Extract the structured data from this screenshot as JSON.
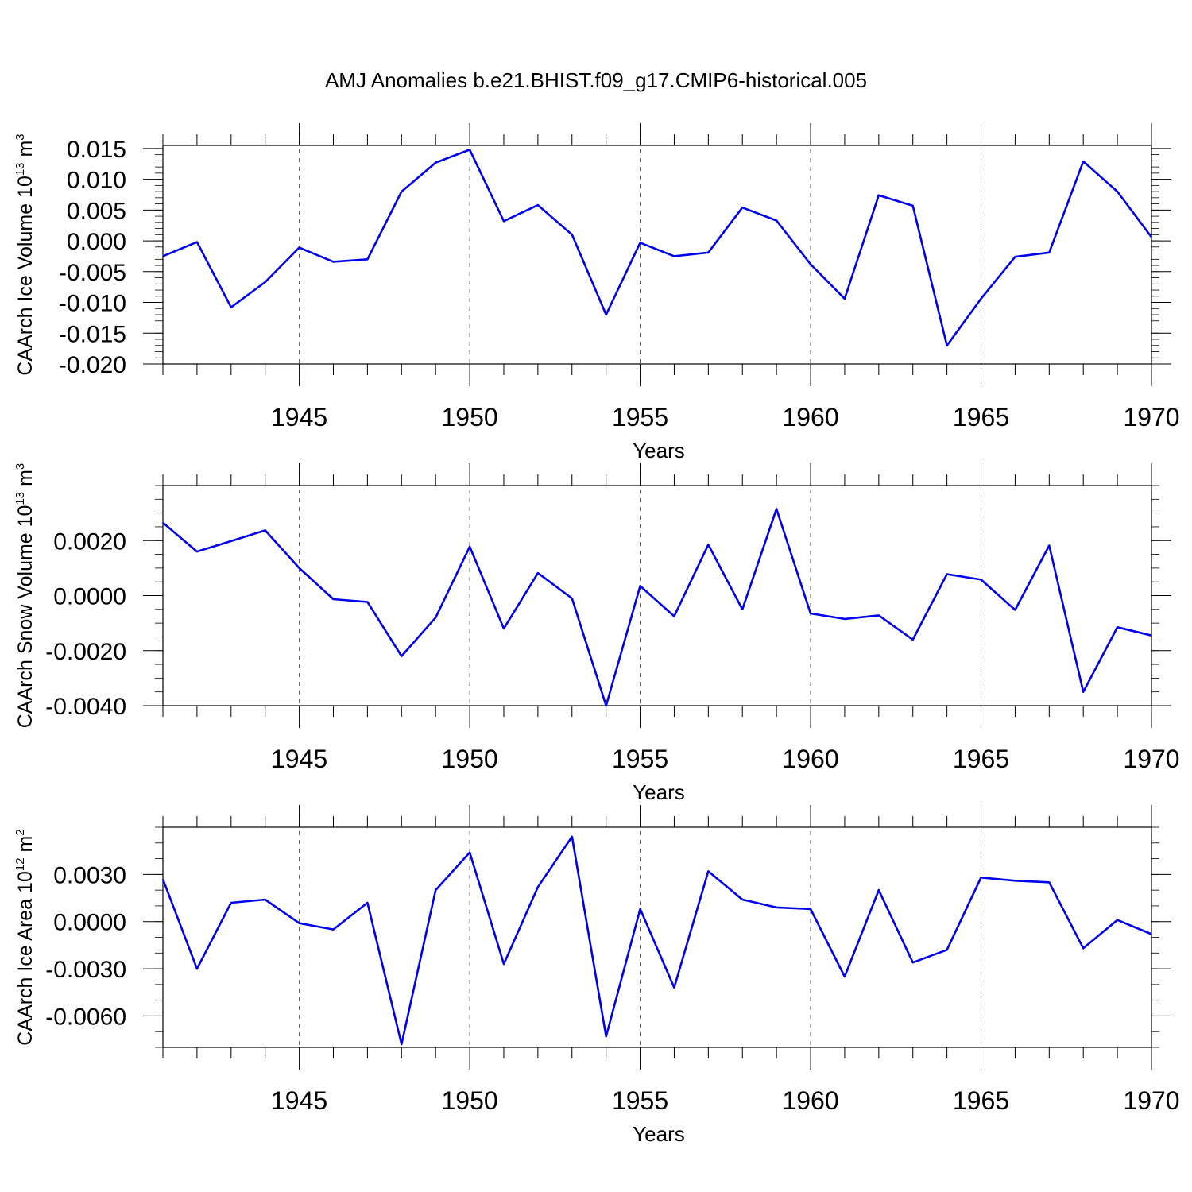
{
  "title": "AMJ Anomalies b.e21.BHIST.f09_g17.CMIP6-historical.005",
  "colors": {
    "series": "#0000ee",
    "axes": "#000000",
    "grid": "#555555"
  },
  "chart_data": [
    {
      "type": "line",
      "ylabel": {
        "prefix": "CAArch Ice Volume 10",
        "exp": "13",
        "unit": " m",
        "unit_exp": "3"
      },
      "xlabel": "Years",
      "xlim": [
        1941,
        1970
      ],
      "ylim": [
        -0.02,
        0.0155
      ],
      "yticks": [
        0.015,
        0.01,
        0.005,
        0.0,
        -0.005,
        -0.01,
        -0.015,
        -0.02
      ],
      "ytick_labels": [
        "0.015",
        "0.010",
        "0.005",
        "0.000",
        "-0.005",
        "-0.010",
        "-0.015",
        "-0.020"
      ],
      "yminor": 0.001,
      "xticks": [
        1945,
        1950,
        1955,
        1960,
        1965,
        1970
      ],
      "xtick_labels": [
        "1945",
        "1950",
        "1955",
        "1960",
        "1965",
        "1970"
      ],
      "x": [
        1941,
        1942,
        1943,
        1944,
        1945,
        1946,
        1947,
        1948,
        1949,
        1950,
        1951,
        1952,
        1953,
        1954,
        1955,
        1956,
        1957,
        1958,
        1959,
        1960,
        1961,
        1962,
        1963,
        1964,
        1965,
        1966,
        1967,
        1968,
        1969,
        1970
      ],
      "values": [
        -0.0025,
        -0.0002,
        -0.0108,
        -0.0067,
        -0.0011,
        -0.0034,
        -0.003,
        0.008,
        0.0127,
        0.0148,
        0.0032,
        0.0058,
        0.001,
        -0.012,
        -0.0003,
        -0.0025,
        -0.0019,
        0.0054,
        0.0033,
        -0.0038,
        -0.0094,
        0.0074,
        0.0057,
        -0.017,
        -0.0094,
        -0.0026,
        -0.0019,
        0.0129,
        0.008,
        0.0006
      ]
    },
    {
      "type": "line",
      "ylabel": {
        "prefix": "CAArch Snow Volume 10",
        "exp": "13",
        "unit": " m",
        "unit_exp": "3"
      },
      "xlabel": "Years",
      "xlim": [
        1941,
        1970
      ],
      "ylim": [
        -0.004,
        0.004
      ],
      "yticks": [
        0.002,
        0.0,
        -0.002,
        -0.004
      ],
      "ytick_labels": [
        "0.0020",
        "0.0000",
        "-0.0020",
        "-0.0040"
      ],
      "yminor": 0.0005,
      "xticks": [
        1945,
        1950,
        1955,
        1960,
        1965,
        1970
      ],
      "xtick_labels": [
        "1945",
        "1950",
        "1955",
        "1960",
        "1965",
        "1970"
      ],
      "x": [
        1941,
        1942,
        1943,
        1944,
        1945,
        1946,
        1947,
        1948,
        1949,
        1950,
        1951,
        1952,
        1953,
        1954,
        1955,
        1956,
        1957,
        1958,
        1959,
        1960,
        1961,
        1962,
        1963,
        1964,
        1965,
        1966,
        1967,
        1968,
        1969,
        1970
      ],
      "values": [
        0.00265,
        0.0016,
        0.00198,
        0.00237,
        0.001,
        -0.00013,
        -0.00023,
        -0.0022,
        -0.0008,
        0.00178,
        -0.0012,
        0.00082,
        -0.0001,
        -0.004,
        0.00035,
        -0.00075,
        0.00185,
        -0.0005,
        0.00315,
        -0.00065,
        -0.00085,
        -0.00072,
        -0.0016,
        0.00078,
        0.00058,
        -0.00052,
        0.00182,
        -0.0035,
        -0.00115,
        -0.00145
      ]
    },
    {
      "type": "line",
      "ylabel": {
        "prefix": "CAArch Ice Area 10",
        "exp": "12",
        "unit": " m",
        "unit_exp": "2"
      },
      "xlabel": "Years",
      "xlim": [
        1941,
        1970
      ],
      "ylim": [
        -0.008,
        0.006
      ],
      "yticks": [
        0.003,
        0.0,
        -0.003,
        -0.006
      ],
      "ytick_labels": [
        "0.0030",
        "0.0000",
        "-0.0030",
        "-0.0060"
      ],
      "yminor": 0.001,
      "xticks": [
        1945,
        1950,
        1955,
        1960,
        1965,
        1970
      ],
      "xtick_labels": [
        "1945",
        "1950",
        "1955",
        "1960",
        "1965",
        "1970"
      ],
      "x": [
        1941,
        1942,
        1943,
        1944,
        1945,
        1946,
        1947,
        1948,
        1949,
        1950,
        1951,
        1952,
        1953,
        1954,
        1955,
        1956,
        1957,
        1958,
        1959,
        1960,
        1961,
        1962,
        1963,
        1964,
        1965,
        1966,
        1967,
        1968,
        1969,
        1970
      ],
      "values": [
        0.0027,
        -0.003,
        0.0012,
        0.0014,
        -0.0001,
        -0.0005,
        0.0012,
        -0.0078,
        0.002,
        0.0044,
        -0.0027,
        0.0022,
        0.0054,
        -0.0073,
        0.0008,
        -0.0042,
        0.0032,
        0.0014,
        0.0009,
        0.0008,
        -0.0035,
        0.002,
        -0.0026,
        -0.0018,
        0.0028,
        0.0026,
        0.0025,
        -0.0017,
        0.0001,
        -0.0008
      ]
    }
  ]
}
